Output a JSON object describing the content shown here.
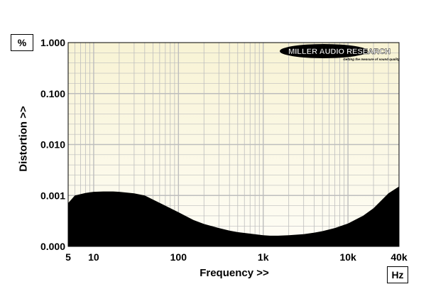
{
  "chart_data": {
    "type": "area",
    "xlabel": "Frequency >>",
    "ylabel": "Distortion >>",
    "x_unit": "Hz",
    "y_unit": "%",
    "x_scale": "log",
    "xlim": [
      5,
      40000
    ],
    "ylim": [
      0,
      1
    ],
    "y_tick_positions": [
      0,
      0.001,
      0.01,
      0.1,
      1
    ],
    "x_ticks": [
      "5",
      "10",
      "100",
      "1k",
      "10k",
      "40k"
    ],
    "y_ticks": [
      "0.000",
      "0.001",
      "0.010",
      "0.100",
      "1.000"
    ],
    "grid": true,
    "logo": {
      "brand": "MILLER AUDIO RESEARCH",
      "tagline": "Getting the measure of sound quality"
    },
    "colors": {
      "fill": "#000000",
      "grid": "#bdbdbd",
      "bg_top": "#f8f3d4",
      "bg_bottom": "#fefdf6",
      "frame": "#000000"
    },
    "series": [
      {
        "x": [
          5,
          6,
          8,
          10,
          13,
          17,
          20,
          30,
          40,
          50,
          70,
          100,
          150,
          200,
          300,
          400,
          500,
          700,
          1000,
          1200,
          1500,
          2000,
          3000,
          4000,
          5000,
          7000,
          10000,
          15000,
          20000,
          30000,
          40000
        ],
        "y": [
          0.00085,
          0.001,
          0.00112,
          0.00118,
          0.0012,
          0.0012,
          0.00118,
          0.0011,
          0.001,
          0.00092,
          0.0008,
          0.00067,
          0.00052,
          0.00044,
          0.00036,
          0.00031,
          0.00028,
          0.00025,
          0.00022,
          0.00021,
          0.00021,
          0.00022,
          0.00024,
          0.00027,
          0.0003,
          0.00036,
          0.00045,
          0.0006,
          0.00075,
          0.0011,
          0.0015
        ]
      }
    ]
  }
}
